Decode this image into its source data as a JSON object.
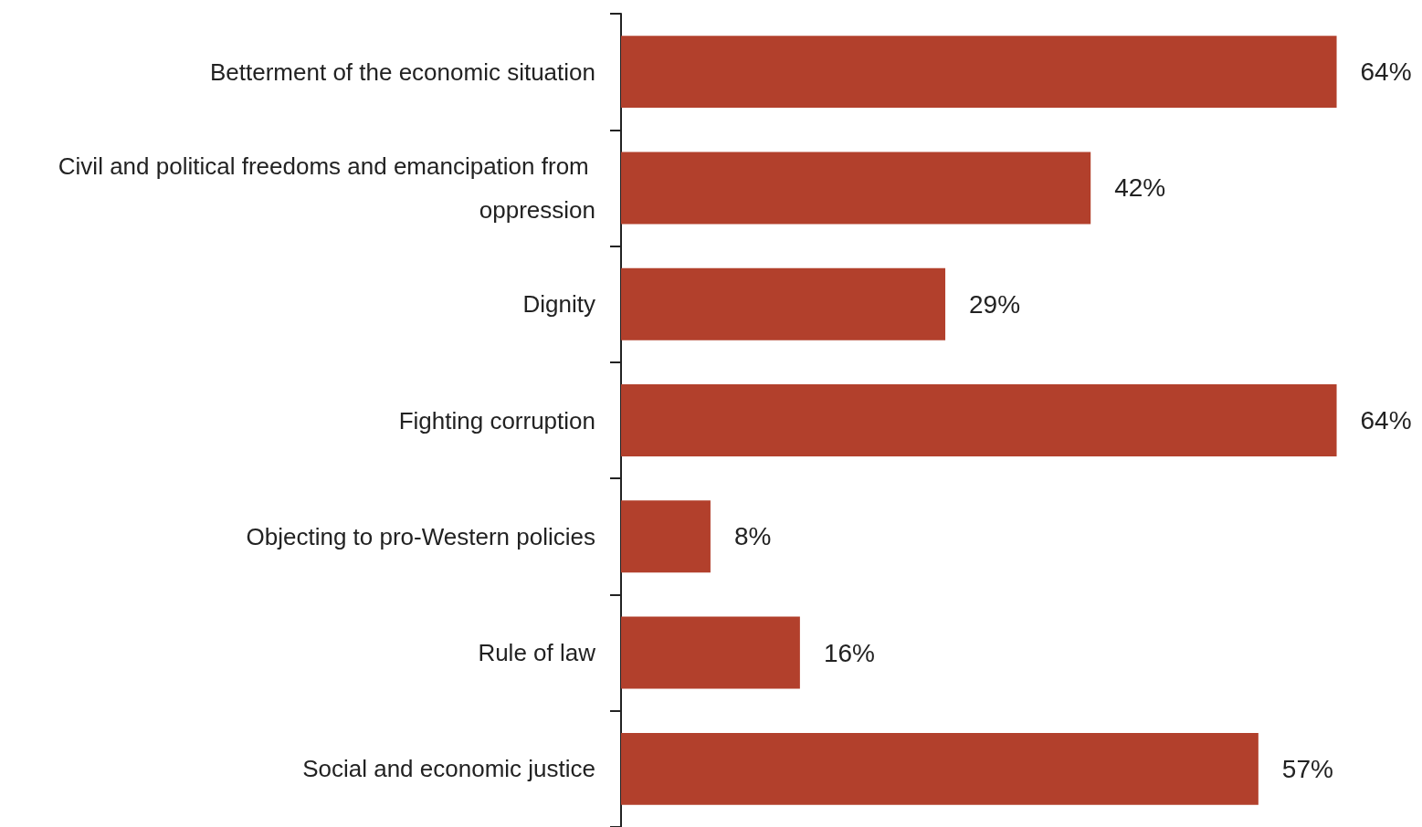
{
  "chart_data": {
    "type": "bar",
    "orientation": "horizontal",
    "categories": [
      "Betterment of the economic situation",
      "Civil and political freedoms and emancipation from oppression",
      "Dignity",
      "Fighting corruption",
      "Objecting to pro-Western policies",
      "Rule of law",
      "Social and economic justice"
    ],
    "values": [
      64,
      42,
      29,
      64,
      8,
      16,
      57
    ],
    "value_labels": [
      "64%",
      "42%",
      "29%",
      "64%",
      "8%",
      "16%",
      "57%"
    ],
    "color": "#b2402c"
  }
}
